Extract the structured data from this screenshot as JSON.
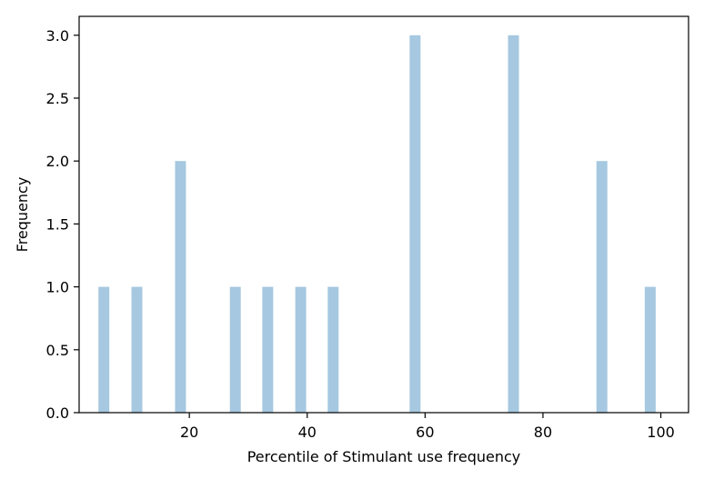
{
  "chart_data": {
    "type": "bar",
    "title": "",
    "xlabel": "Percentile of Stimulant use frequency",
    "ylabel": "Frequency",
    "xlim": [
      1.3,
      104.7
    ],
    "ylim": [
      0,
      3.15
    ],
    "bin_width": 1.85,
    "x_ticks": [
      20,
      40,
      60,
      80,
      100
    ],
    "y_ticks": [
      0.0,
      0.5,
      1.0,
      1.5,
      2.0,
      2.5,
      3.0
    ],
    "x_tick_labels": [
      "20",
      "40",
      "60",
      "80",
      "100"
    ],
    "y_tick_labels": [
      "0.0",
      "0.5",
      "1.0",
      "1.5",
      "2.0",
      "2.5",
      "3.0"
    ],
    "bar_color": "#a6c8e0",
    "grid": false,
    "bins": [
      {
        "x": 5.5,
        "value": 1
      },
      {
        "x": 11.1,
        "value": 1
      },
      {
        "x": 18.5,
        "value": 2
      },
      {
        "x": 27.8,
        "value": 1
      },
      {
        "x": 33.3,
        "value": 1
      },
      {
        "x": 38.9,
        "value": 1
      },
      {
        "x": 44.4,
        "value": 1
      },
      {
        "x": 58.3,
        "value": 3
      },
      {
        "x": 75.0,
        "value": 3
      },
      {
        "x": 90.0,
        "value": 2
      },
      {
        "x": 98.2,
        "value": 1
      }
    ]
  }
}
